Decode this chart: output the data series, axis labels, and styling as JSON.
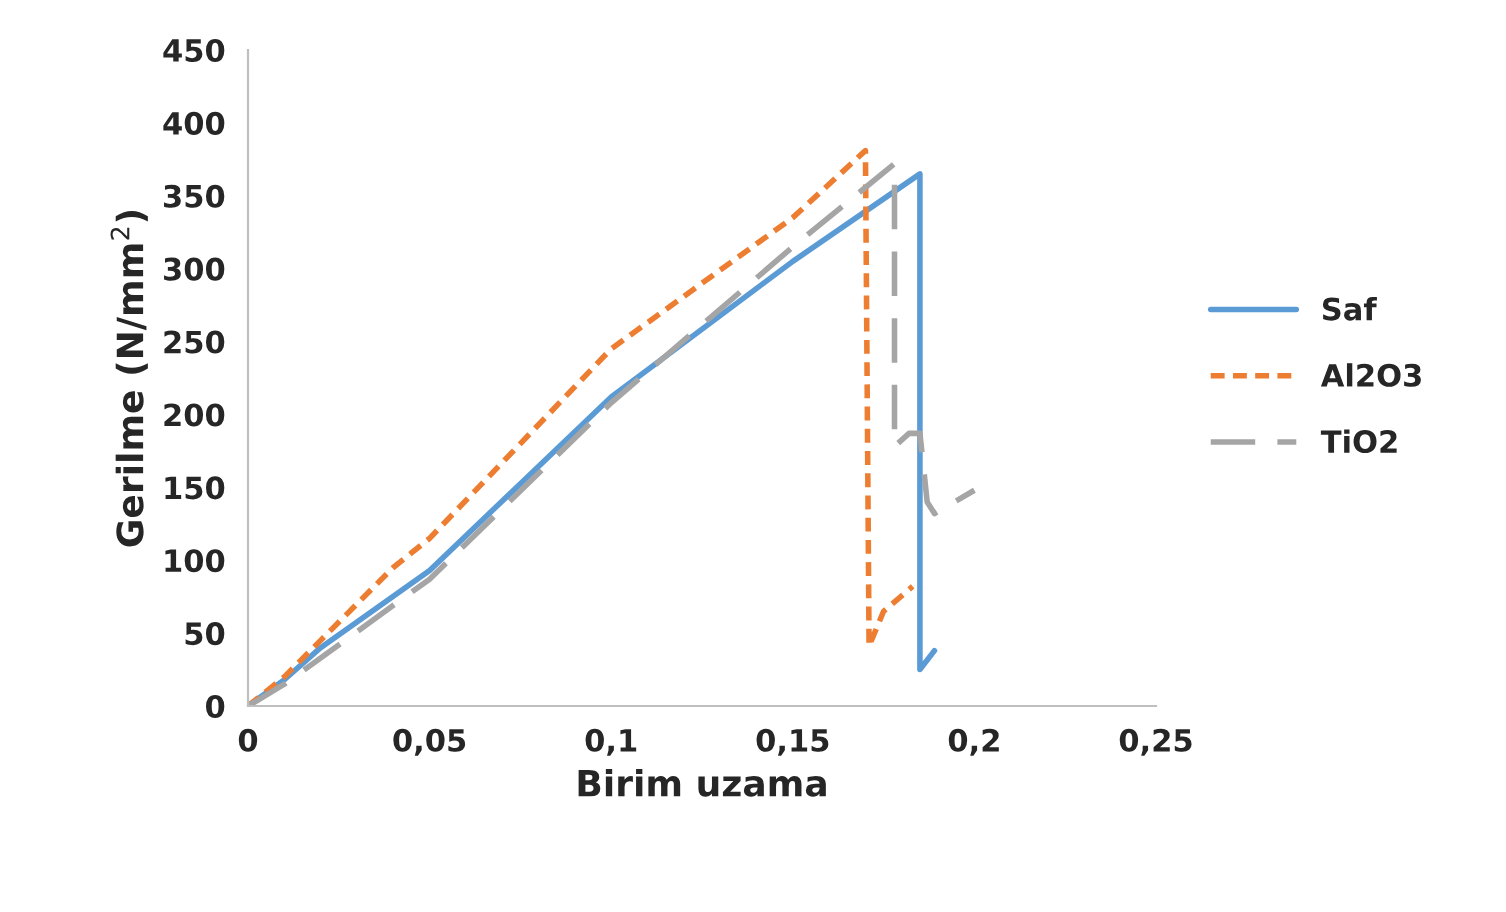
{
  "chart_data": {
    "type": "line",
    "xlabel": "Birim uzama",
    "ylabel": "Gerilme (N/mm$^{2}$)",
    "xlim": [
      0,
      0.25
    ],
    "xticks": [
      {
        "value": 0,
        "label": "0"
      },
      {
        "value": 0.05,
        "label": "0,05"
      },
      {
        "value": 0.1,
        "label": "0,1"
      },
      {
        "value": 0.15,
        "label": "0,15"
      },
      {
        "value": 0.2,
        "label": "0,2"
      },
      {
        "value": 0.25,
        "label": "0,25"
      }
    ],
    "ylim": [
      0,
      450
    ],
    "yticks": [
      0,
      50,
      100,
      150,
      200,
      250,
      300,
      350,
      400,
      450
    ],
    "grid": false,
    "legend": "right",
    "marker": "none",
    "series": [
      {
        "name": "Saf",
        "color": "#5b9bd5",
        "line_style": "solid",
        "x": [
          0,
          0.01,
          0.02,
          0.05,
          0.1,
          0.15,
          0.185,
          0.185,
          0.189
        ],
        "values": [
          0,
          18,
          40,
          93,
          212,
          305,
          365,
          25,
          38
        ]
      },
      {
        "name": "Al2O3",
        "color": "#ed7d31",
        "line_style": "dotted",
        "x": [
          0,
          0.01,
          0.02,
          0.04,
          0.05,
          0.1,
          0.15,
          0.17,
          0.171,
          0.175,
          0.183
        ],
        "values": [
          0,
          20,
          45,
          95,
          115,
          245,
          335,
          381,
          41,
          65,
          82
        ]
      },
      {
        "name": "TiO2",
        "color": "#a5a5a5",
        "line_style": "dashed",
        "x": [
          0,
          0.01,
          0.02,
          0.05,
          0.1,
          0.15,
          0.178,
          0.178,
          0.182,
          0.185,
          0.187,
          0.189,
          0.2
        ],
        "values": [
          0,
          15,
          33,
          87,
          208,
          315,
          372,
          178,
          187,
          187,
          140,
          132,
          148
        ]
      }
    ]
  }
}
